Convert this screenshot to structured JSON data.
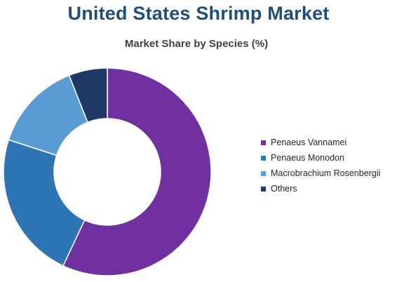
{
  "title": "United States Shrimp Market",
  "subtitle": "Market Share by Species (%)",
  "chart_data": {
    "type": "pie",
    "donut": true,
    "title": "United States Shrimp Market",
    "subtitle": "Market Share by Species (%)",
    "categories": [
      "Penaeus Vannamei",
      "Penaeus Monodon",
      "Macrobrachium Rosenbergii",
      "Others"
    ],
    "values": [
      57,
      23,
      14,
      6
    ],
    "colors": [
      "#7030a0",
      "#2e75b6",
      "#5b9bd5",
      "#1f3864"
    ],
    "legend_position": "right"
  }
}
